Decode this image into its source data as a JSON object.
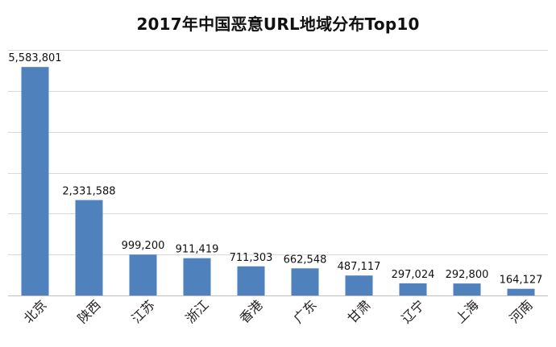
{
  "chart_data": {
    "type": "bar",
    "title": "2017年中国恶意URL地域分布Top10",
    "xlabel": "",
    "ylabel": "",
    "categories": [
      "北京",
      "陕西",
      "江苏",
      "浙江",
      "香港",
      "广东",
      "甘肃",
      "辽宁",
      "上海",
      "河南"
    ],
    "values": [
      5583801,
      2331588,
      999200,
      911419,
      711303,
      662548,
      487117,
      297024,
      292800,
      164127
    ],
    "value_labels": [
      "5,583,801",
      "2,331,588",
      "999,200",
      "911,419",
      "711,303",
      "662,548",
      "487,117",
      "297,024",
      "292,800",
      "164,127"
    ],
    "ylim": [
      0,
      6000000
    ],
    "y_gridlines": [
      0,
      1000000,
      2000000,
      3000000,
      4000000,
      5000000,
      6000000
    ],
    "grid": true,
    "legend": "none",
    "colors": {
      "bar": "#4f81bd",
      "grid": "#d9d9d9",
      "axis": "#bfbfbf"
    }
  }
}
